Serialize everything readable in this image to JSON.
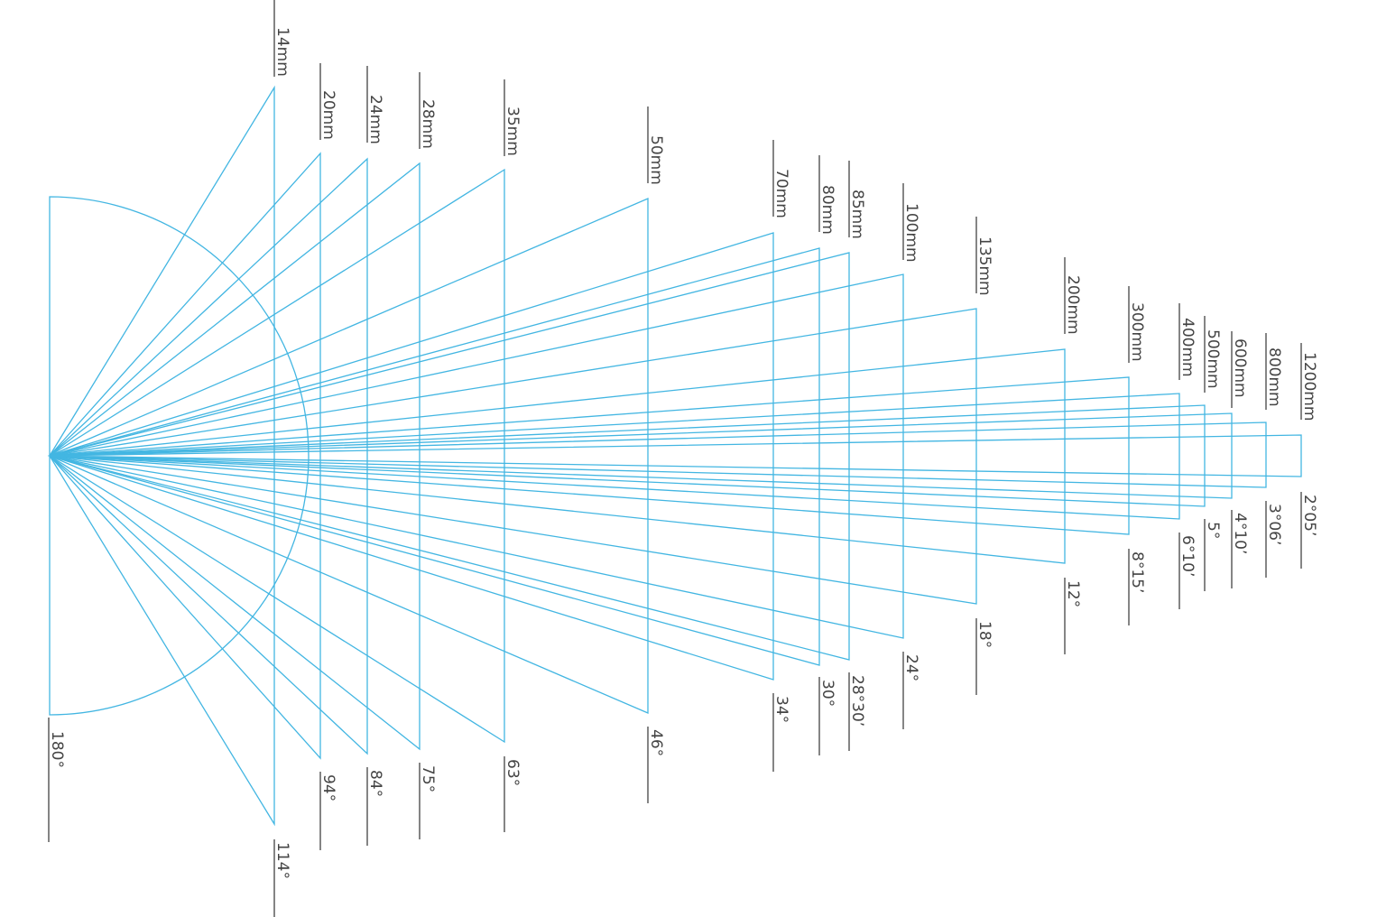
{
  "lenses": [
    {
      "focal": "14mm",
      "angle": "114°"
    },
    {
      "focal": "20mm",
      "angle": "94°"
    },
    {
      "focal": "24mm",
      "angle": "84°"
    },
    {
      "focal": "28mm",
      "angle": "75°"
    },
    {
      "focal": "35mm",
      "angle": "63°"
    },
    {
      "focal": "50mm",
      "angle": "46°"
    },
    {
      "focal": "70mm",
      "angle": "34°"
    },
    {
      "focal": "80mm",
      "angle": "30°"
    },
    {
      "focal": "85mm",
      "angle": "28°30’"
    },
    {
      "focal": "100mm",
      "angle": "24°"
    },
    {
      "focal": "135mm",
      "angle": "18°"
    },
    {
      "focal": "200mm",
      "angle": "12°"
    },
    {
      "focal": "300mm",
      "angle": "8°15’"
    },
    {
      "focal": "400mm",
      "angle": "6°10’"
    },
    {
      "focal": "500mm",
      "angle": "5°"
    },
    {
      "focal": "600mm",
      "angle": "4°10’"
    },
    {
      "focal": "800mm",
      "angle": "3°06’"
    },
    {
      "focal": "1200mm",
      "angle": "2°05’"
    }
  ],
  "half_circle": {
    "angle": "180°"
  }
}
